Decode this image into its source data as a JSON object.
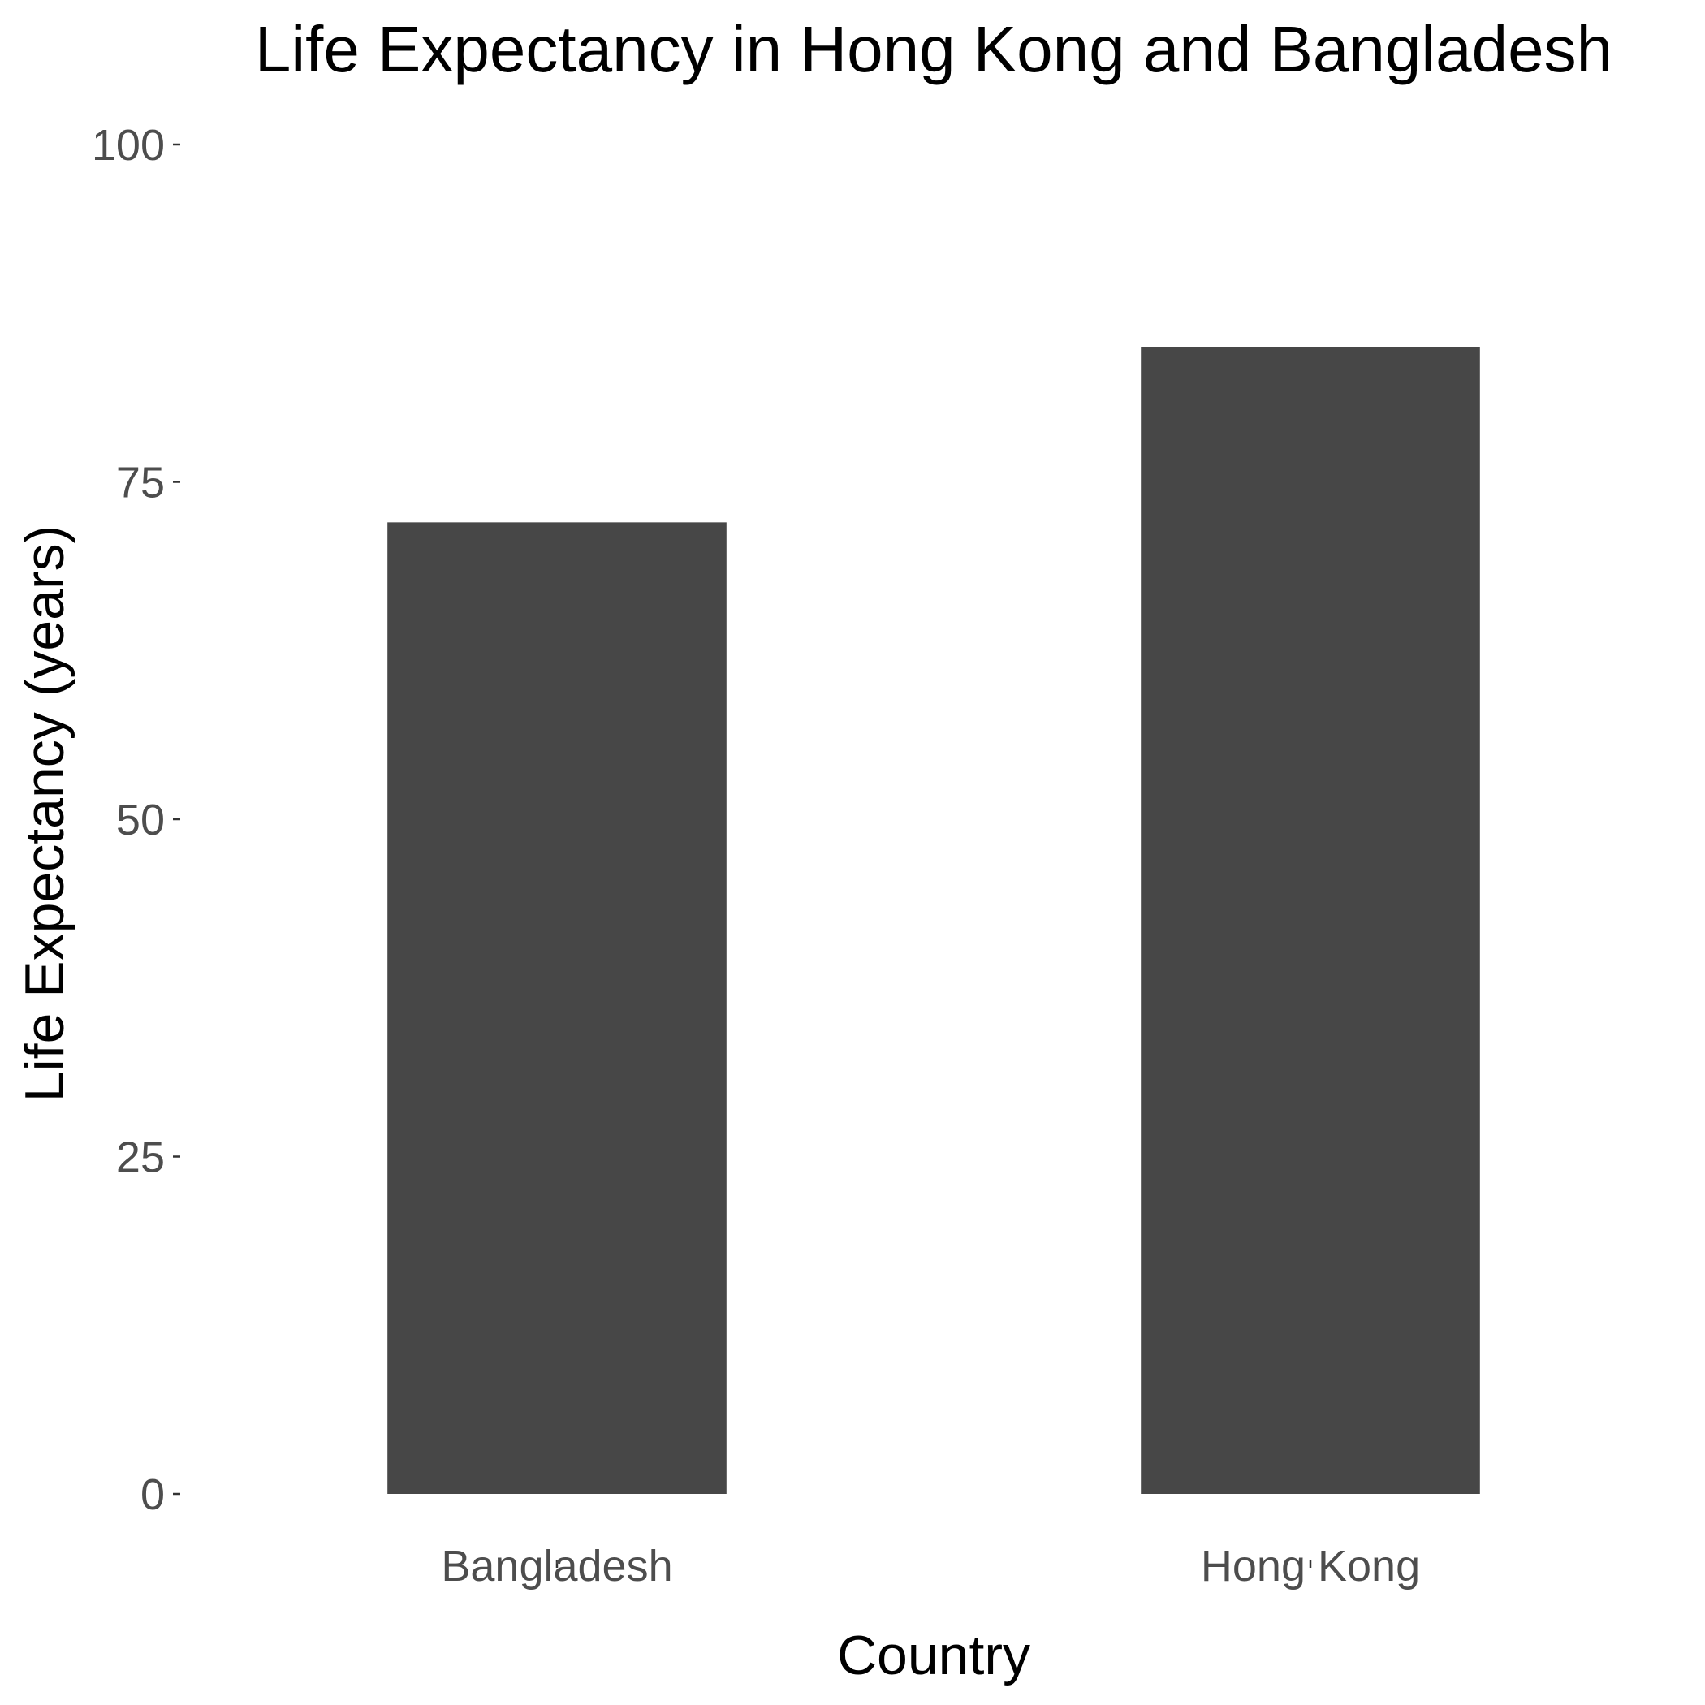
{
  "chart_data": {
    "type": "bar",
    "title": "Life Expectancy in Hong Kong and Bangladesh",
    "xlabel": "Country",
    "ylabel": "Life Expectancy (years)",
    "categories": [
      "Bangladesh",
      "Hong Kong"
    ],
    "values": [
      72.0,
      85.0
    ],
    "ylim": [
      0,
      100
    ],
    "yticks": [
      0,
      25,
      50,
      75,
      100
    ],
    "bar_color": "#474747",
    "grid": false,
    "legend": "none"
  }
}
